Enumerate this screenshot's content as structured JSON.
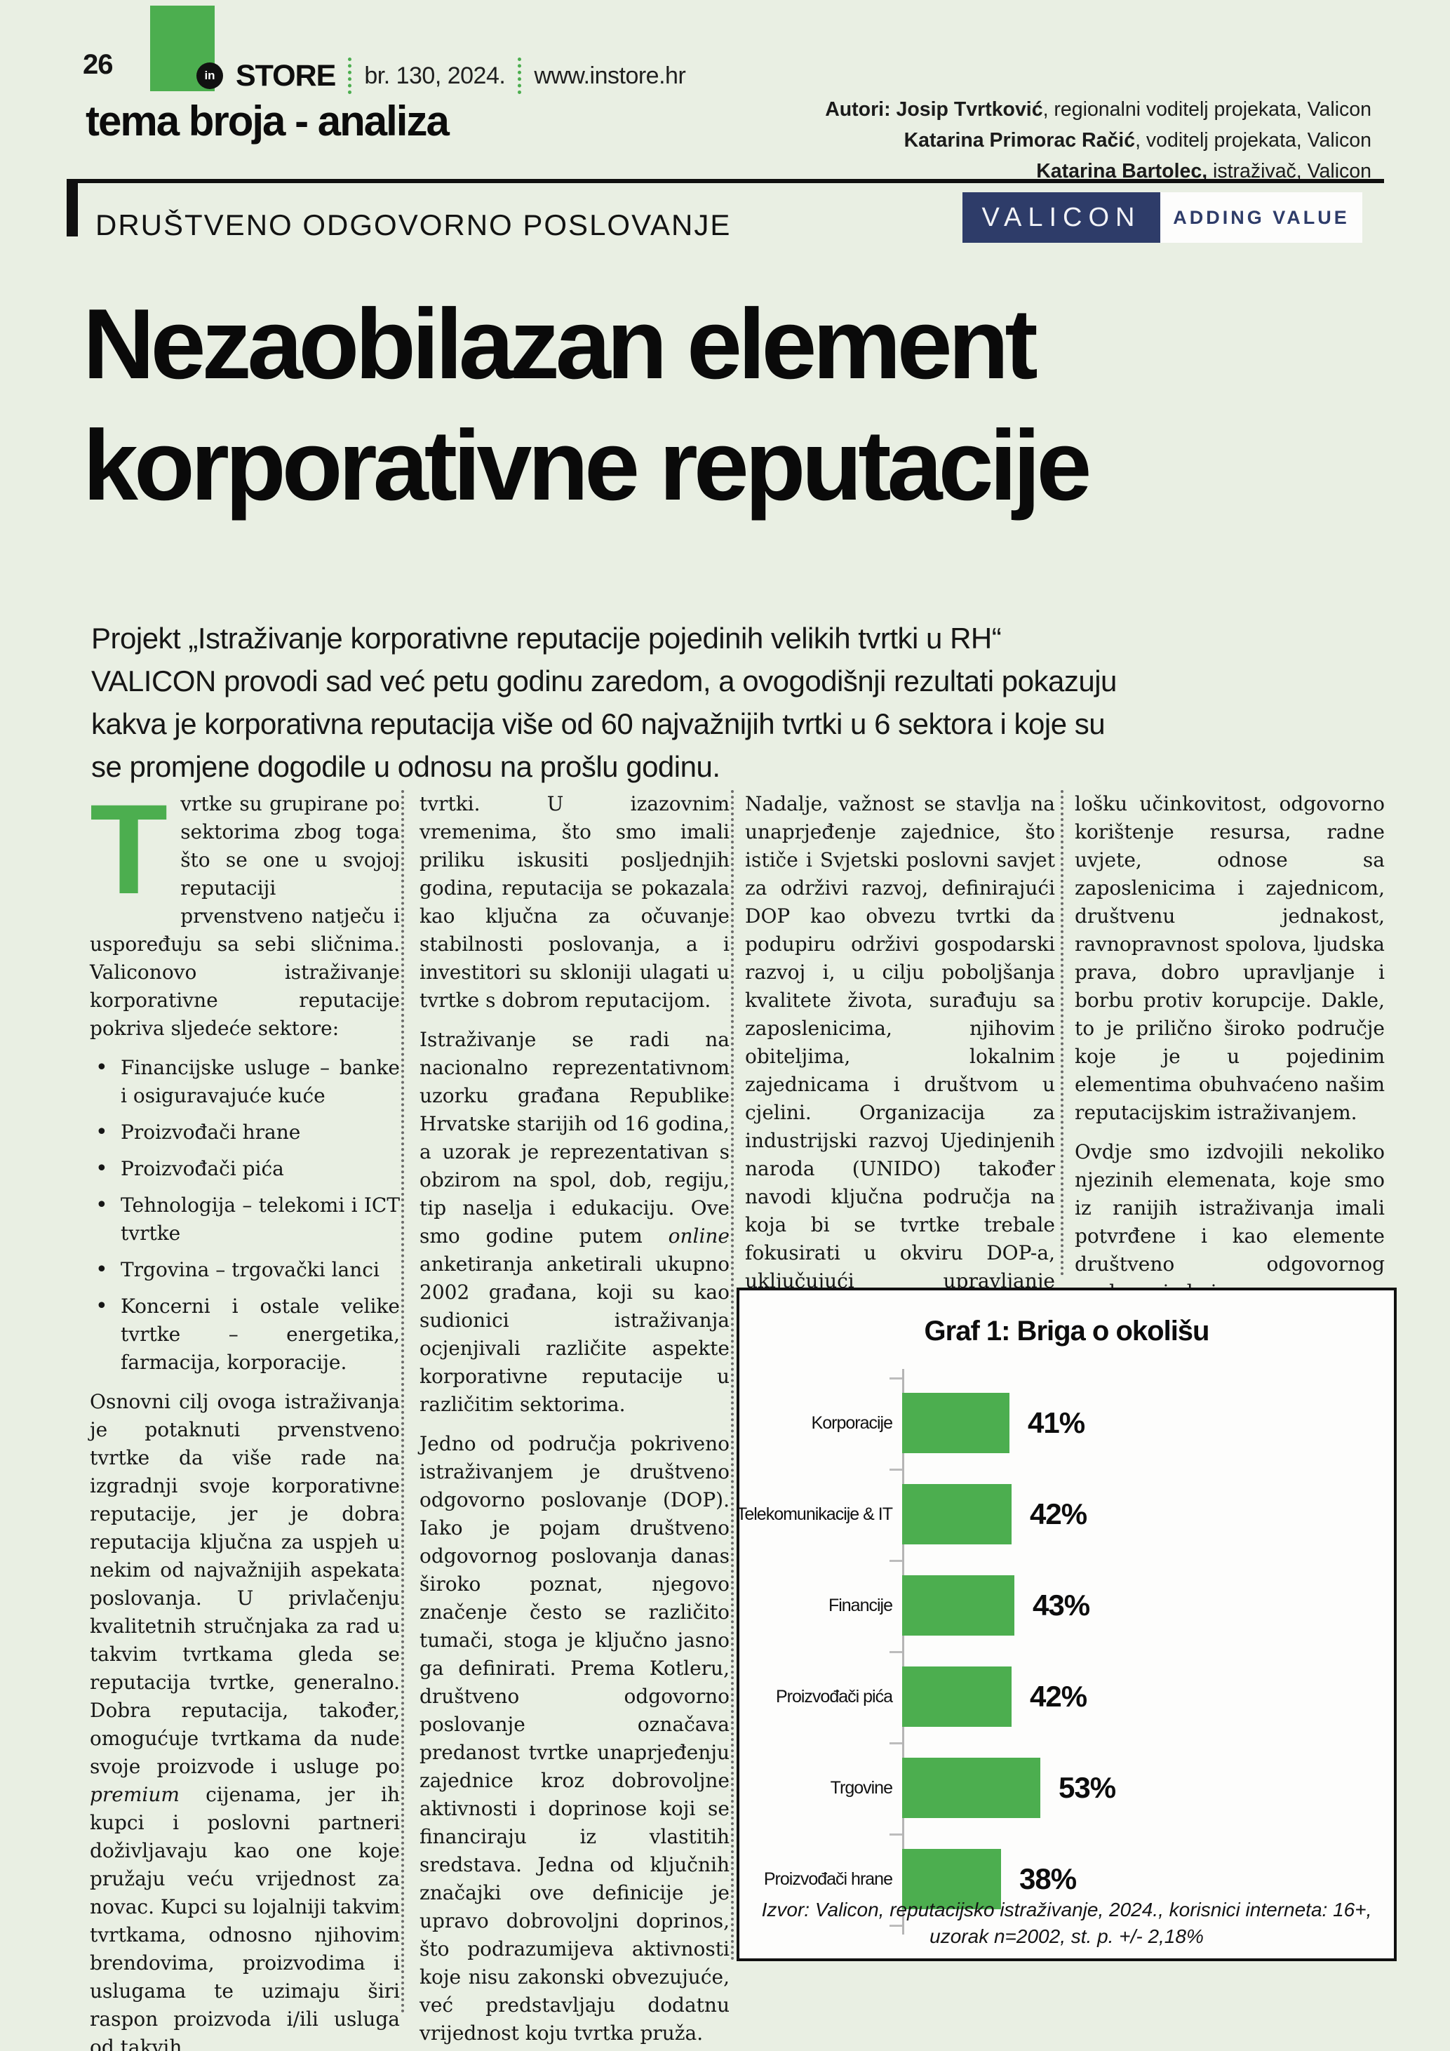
{
  "colors": {
    "page_background": "#e9efe3",
    "accent_green": "#4cae4f",
    "valicon_navy": "#2e3c69",
    "text": "#141414"
  },
  "header": {
    "page_number": "26",
    "brand_mark": "in",
    "brand": "STORE",
    "issue": "br. 130, 2024.",
    "website": "www.instore.hr",
    "section_title": "tema broja - analiza",
    "kicker": "DRUŠTVENO ODGOVORNO POSLOVANJE"
  },
  "authors": {
    "line1_bold": "Autori: Josip Tvrtković",
    "line1_rest": ", regionalni voditelj projekata, Valicon",
    "line2_bold": "Katarina Primorac Račić",
    "line2_rest": ", voditelj projekata, Valicon",
    "line3_bold": "Katarina Bartolec,",
    "line3_rest": " istraživač, Valicon"
  },
  "valicon_logo": {
    "name": "VALICON",
    "tagline": "ADDING VALUE"
  },
  "headline": {
    "line1": "Nezaobilazan element",
    "line2": "korporativne reputacije"
  },
  "lead": "Projekt „Istraživanje korporativne reputacije pojedinih velikih tvrtki u RH“ VALICON provodi sad već petu godinu zaredom, a ovogodišnji rezultati pokazuju kakva je korporativna reputacija više od 60 najvažnijih tvrtki u 6 sektora i koje su se promjene dogodile u odnosu na prošlu godinu.",
  "article": {
    "col1": {
      "dropcap": "T",
      "para1": "vrtke su grupirane po sektorima zbog toga što se one u svojoj reputaciji prvenstveno natječu i uspoređuju sa sebi sličnima. Valiconovo istraživanje korporativne reputacije pokriva sljedeće sektore:",
      "bullets": [
        "Financijske usluge – banke i osiguravajuće kuće",
        "Proizvođači hrane",
        "Proizvođači pića",
        "Tehnologija – telekomi i ICT tvrtke",
        "Trgovina – trgovački lanci",
        "Koncerni i ostale velike tvrtke – energetika, farmacija, korporacije."
      ],
      "para2a": "Osnovni cilj ovoga istraživanja je potaknuti prvenstveno tvrtke da više rade na izgradnji svoje korporativne reputacije, jer je dobra reputacija ključna za uspjeh u nekim od najvažnijih aspekata poslovanja. U privlačenju kvalitetnih stručnjaka za rad u takvim tvrtkama gleda se reputacija tvrtke, generalno. Dobra reputacija, također, omogućuje tvrtkama da nude svoje proizvode i usluge po ",
      "para2_italic": "premium",
      "para2b": " cijenama, jer ih kupci i poslovni partneri doživljavaju kao one koje pružaju veću vrijednost za novac. Kupci su lojalniji takvim tvrtkama, odnosno njihovim brendovima, proizvodima i uslugama te uzimaju širi raspon proizvoda i/ili usluga od takvih"
    },
    "col2": {
      "para1": "tvrtki. U izazovnim vremenima, što smo imali priliku iskusiti posljednjih godina, reputacija se pokazala kao ključna za očuvanje stabilnosti poslovanja, a i investitori su skloniji ulagati u tvrtke s dobrom reputacijom.",
      "para2a": "Istraživanje se radi na nacionalno reprezentativnom uzorku građana Republike Hrvatske starijih od 16 godina, a uzorak je reprezentativan s obzirom na spol, dob, regiju, tip naselja i edukaciju. Ove smo godine putem ",
      "para2_italic": "online",
      "para2b": " anketiranja anketirali ukupno 2002 građana, koji su kao sudionici istraživanja ocjenjivali različite aspekte korporativne reputacije u različitim sektorima.",
      "para3": "Jedno od područja pokriveno istraživanjem je društveno odgovorno poslovanje (DOP). Iako je pojam društveno odgovornog poslovanja danas široko poznat, njegovo značenje često se različito tumači, stoga je ključno jasno ga definirati. Prema Kotleru, društveno odgovorno poslovanje označava predanost tvrtke unaprjeđenju zajednice kroz dobrovoljne aktivnosti i doprinose koji se financiraju iz vlastitih sredstava. Jedna od ključnih značajki ove definicije je upravo dobrovoljni doprinos, što podrazumijeva aktivnosti koje nisu zakonski obvezujuće, već predstavljaju dodatnu vrijednost koju tvrtka pruža."
    },
    "col3": {
      "para1": "Nadalje, važnost se stavlja na unaprjeđenje zajednice, što ističe i Svjetski poslovni savjet za održivi razvoj, definirajući DOP kao obvezu tvrtki da podupiru održivi gospodarski razvoj i, u cilju poboljšanja kvalitete života, surađuju sa zaposlenicima, njihovim obiteljima, lokalnim zajednicama i društvom u cjelini. Organizacija za industrijski razvoj Ujedinjenih naroda (UNIDO) također navodi ključna područja na koja bi se tvrtke trebale fokusirati u okviru DOP-a, uključujući upravljanje okolišem, eko-"
    },
    "col4": {
      "para1": "lošku učinkovitost, odgovorno korištenje resursa, radne uvjete, odnose sa zaposlenicima i zajednicom, društvenu jednakost, ravnopravnost spolova, ljudska prava, dobro upravljanje i borbu protiv korupcije. Dakle, to je prilično široko područje koje je u pojedinim elementima obuhvaćeno našim reputacijskim istraživanjem.",
      "para2": "Ovdje smo izdvojili nekoliko njezinih elemenata, koje smo iz ranijih istraživanja imali potvrđene i kao elemente društveno odgovornog poslovanja koje"
    }
  },
  "chart_data": {
    "type": "bar",
    "orientation": "horizontal",
    "title": "Graf 1: Briga o okolišu",
    "categories": [
      "Korporacije",
      "Telekomunikacije & IT",
      "Financije",
      "Proizvođači pića",
      "Trgovine",
      "Proizvođači hrane"
    ],
    "values": [
      41,
      42,
      43,
      42,
      53,
      38
    ],
    "value_suffix": "%",
    "bar_color": "#4cae4f",
    "xlim": [
      0,
      100
    ],
    "grid": false,
    "legend": false,
    "source_line1": "Izvor: Valicon, reputacijsko istraživanje, 2024., korisnici interneta: 16+,",
    "source_line2": "uzorak n=2002, st. p. +/- 2,18%"
  }
}
